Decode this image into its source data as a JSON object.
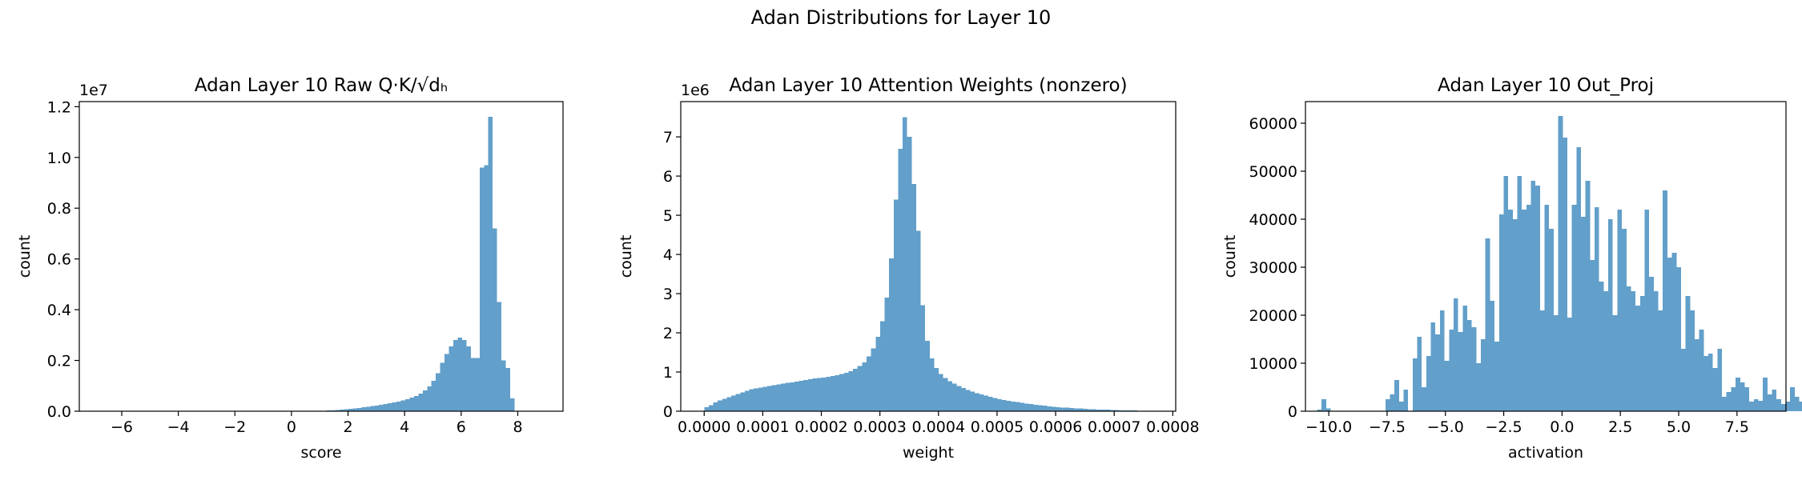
{
  "figure": {
    "title": "Adan Distributions for Layer 10",
    "bar_color": "#629fca"
  },
  "chart_data": [
    {
      "type": "bar",
      "title": "Adan Layer 10 Raw Q·K/√dₕ",
      "xlabel": "score",
      "ylabel": "count",
      "y_multiplier": "1e7",
      "xlim": [
        -7.5,
        9.6
      ],
      "ylim": [
        0,
        12200000
      ],
      "xticks": [
        -6,
        -4,
        -2,
        0,
        2,
        4,
        6,
        8
      ],
      "xtick_labels": [
        "−6",
        "−4",
        "−2",
        "0",
        "2",
        "4",
        "6",
        "8"
      ],
      "yticks": [
        0,
        2000000,
        4000000,
        6000000,
        8000000,
        10000000,
        12000000
      ],
      "ytick_labels": [
        "0.0",
        "0.2",
        "0.4",
        "0.6",
        "0.8",
        "1.0",
        "1.2"
      ],
      "bin_start": -6.8,
      "bin_width": 0.1546,
      "counts": [
        0,
        0,
        0,
        0,
        0,
        0,
        0,
        0,
        0,
        0,
        0,
        0,
        0,
        0,
        0,
        0,
        0,
        0,
        0,
        0,
        0,
        0,
        0,
        0,
        0,
        0,
        0,
        0,
        0,
        0,
        0,
        0,
        0,
        0,
        0,
        0,
        0,
        0,
        0,
        0,
        0,
        0,
        0,
        0,
        0,
        0,
        0,
        0,
        5000,
        8000,
        12000,
        18000,
        25000,
        35000,
        45000,
        60000,
        75000,
        90000,
        110000,
        130000,
        150000,
        175000,
        200000,
        225000,
        250000,
        280000,
        310000,
        345000,
        380000,
        420000,
        470000,
        530000,
        600000,
        700000,
        820000,
        980000,
        1200000,
        1500000,
        1900000,
        2250000,
        2550000,
        2800000,
        2900000,
        2800000,
        2550000,
        2100000,
        2100000,
        9600000,
        9700000,
        11600000,
        7200000,
        4300000,
        2000000,
        1700000,
        500000
      ]
    },
    {
      "type": "bar",
      "title": "Adan Layer 10 Attention Weights (nonzero)",
      "xlabel": "weight",
      "ylabel": "count",
      "y_multiplier": "1e6",
      "xlim": [
        -4e-05,
        0.000805
      ],
      "ylim": [
        0,
        7900000
      ],
      "xticks": [
        0,
        0.0001,
        0.0002,
        0.0003,
        0.0004,
        0.0005,
        0.0006,
        0.0007,
        0.0008
      ],
      "xtick_labels": [
        "0.0000",
        "0.0001",
        "0.0002",
        "0.0003",
        "0.0004",
        "0.0005",
        "0.0006",
        "0.0007",
        "0.0008"
      ],
      "yticks": [
        0,
        1000000,
        2000000,
        3000000,
        4000000,
        5000000,
        6000000,
        7000000
      ],
      "ytick_labels": [
        "0",
        "1",
        "2",
        "3",
        "4",
        "5",
        "6",
        "7"
      ],
      "bin_start": 0,
      "bin_width": 7.7e-06,
      "counts": [
        100000,
        150000,
        220000,
        280000,
        320000,
        360000,
        400000,
        440000,
        480000,
        520000,
        560000,
        580000,
        600000,
        620000,
        640000,
        660000,
        680000,
        700000,
        720000,
        740000,
        760000,
        780000,
        800000,
        820000,
        840000,
        850000,
        860000,
        880000,
        900000,
        920000,
        950000,
        980000,
        1020000,
        1080000,
        1150000,
        1250000,
        1400000,
        1600000,
        1900000,
        2300000,
        2900000,
        3900000,
        5400000,
        6700000,
        7500000,
        7000000,
        5800000,
        4600000,
        2700000,
        1800000,
        1350000,
        1100000,
        950000,
        850000,
        770000,
        700000,
        640000,
        590000,
        540000,
        500000,
        460000,
        430000,
        400000,
        370000,
        340000,
        310000,
        290000,
        270000,
        250000,
        230000,
        210000,
        195000,
        180000,
        165000,
        150000,
        138000,
        127000,
        116000,
        106000,
        97000,
        89000,
        81000,
        74000,
        67000,
        61000,
        55000,
        50000,
        45000,
        40000,
        36000,
        32000,
        28000,
        25000,
        22000,
        19000,
        16000,
        14000,
        12000,
        10000,
        9000
      ]
    },
    {
      "type": "bar",
      "title": "Adan Layer 10 Out_Proj",
      "xlabel": "activation",
      "ylabel": "count",
      "y_multiplier": "",
      "xlim": [
        -11.0,
        9.6
      ],
      "ylim": [
        0,
        64500
      ],
      "xticks": [
        -10,
        -7.5,
        -5,
        -2.5,
        0,
        2.5,
        5,
        7.5
      ],
      "xtick_labels": [
        "−10.0",
        "−7.5",
        "−5.0",
        "−2.5",
        "0.0",
        "2.5",
        "5.0",
        "7.5"
      ],
      "yticks": [
        0,
        10000,
        20000,
        30000,
        40000,
        50000,
        60000
      ],
      "ytick_labels": [
        "0",
        "10000",
        "20000",
        "30000",
        "40000",
        "50000",
        "60000"
      ],
      "bin_start": -10.5,
      "bin_width": 0.195,
      "counts": [
        300,
        2500,
        600,
        0,
        0,
        0,
        0,
        0,
        0,
        0,
        0,
        0,
        0,
        0,
        0,
        2500,
        3500,
        6500,
        2000,
        4500,
        0,
        11000,
        15500,
        5000,
        11500,
        18500,
        16000,
        21000,
        10500,
        17000,
        23500,
        16500,
        22000,
        19000,
        17500,
        10000,
        15000,
        36000,
        23000,
        14500,
        41000,
        49000,
        42000,
        40000,
        49000,
        42000,
        43000,
        48000,
        47000,
        21000,
        43000,
        38000,
        20000,
        61500,
        57000,
        19500,
        43000,
        55000,
        40500,
        48000,
        31500,
        42500,
        27000,
        25000,
        40000,
        20000,
        42000,
        38000,
        26000,
        25000,
        22000,
        24000,
        42000,
        28000,
        25000,
        21000,
        46000,
        32000,
        33000,
        30000,
        13000,
        24000,
        21000,
        15000,
        17000,
        11500,
        12000,
        9000,
        13000,
        3000,
        4000,
        5000,
        7000,
        6000,
        5000,
        2000,
        2500,
        2200,
        7000,
        3500,
        4500,
        2500,
        1500,
        2000,
        5000,
        3000,
        2000,
        1500,
        1000
      ]
    }
  ]
}
